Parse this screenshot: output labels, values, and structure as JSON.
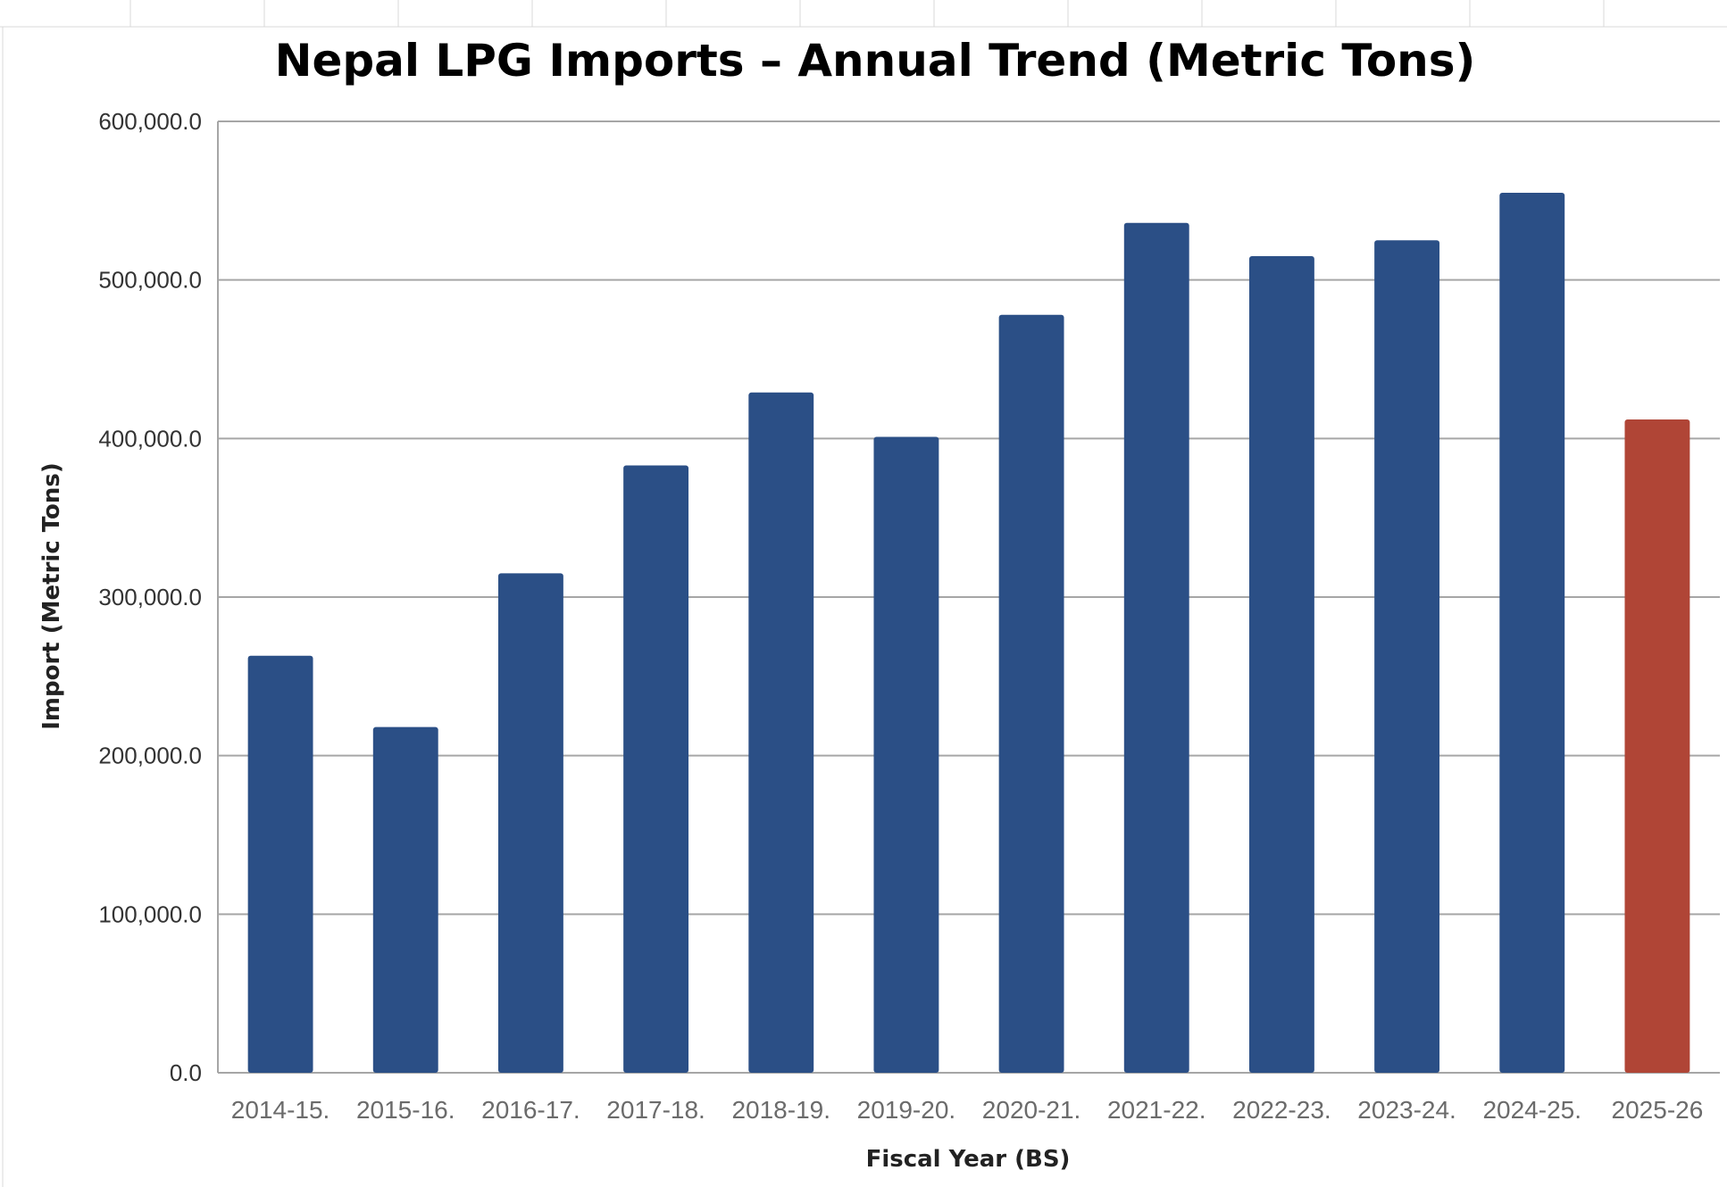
{
  "chart_data": {
    "type": "bar",
    "title": "Nepal LPG Imports – Annual Trend (Metric Tons)",
    "xlabel": "Fiscal Year (BS)",
    "ylabel": "Import (Metric Tons)",
    "ylim": [
      0,
      600000
    ],
    "yticks": [
      {
        "value": 0,
        "label": "0.0"
      },
      {
        "value": 100000,
        "label": "100,000.0"
      },
      {
        "value": 200000,
        "label": "200,000.0"
      },
      {
        "value": 300000,
        "label": "300,000.0"
      },
      {
        "value": 400000,
        "label": "400,000.0"
      },
      {
        "value": 500000,
        "label": "500,000.0"
      },
      {
        "value": 600000,
        "label": "600,000.0"
      }
    ],
    "categories": [
      "2014-15.",
      "2015-16.",
      "2016-17.",
      "2017-18.",
      "2018-19.",
      "2019-20.",
      "2020-21.",
      "2021-22.",
      "2022-23.",
      "2023-24.",
      "2024-25.",
      "2025-26"
    ],
    "values": [
      263000,
      218000,
      315000,
      383000,
      429000,
      401000,
      478000,
      536000,
      515000,
      525000,
      555000,
      412000
    ],
    "bar_colors": [
      "#2b4f86",
      "#2b4f86",
      "#2b4f86",
      "#2b4f86",
      "#2b4f86",
      "#2b4f86",
      "#2b4f86",
      "#2b4f86",
      "#2b4f86",
      "#2b4f86",
      "#2b4f86",
      "#b04536"
    ],
    "grid": true,
    "legend": "none"
  }
}
